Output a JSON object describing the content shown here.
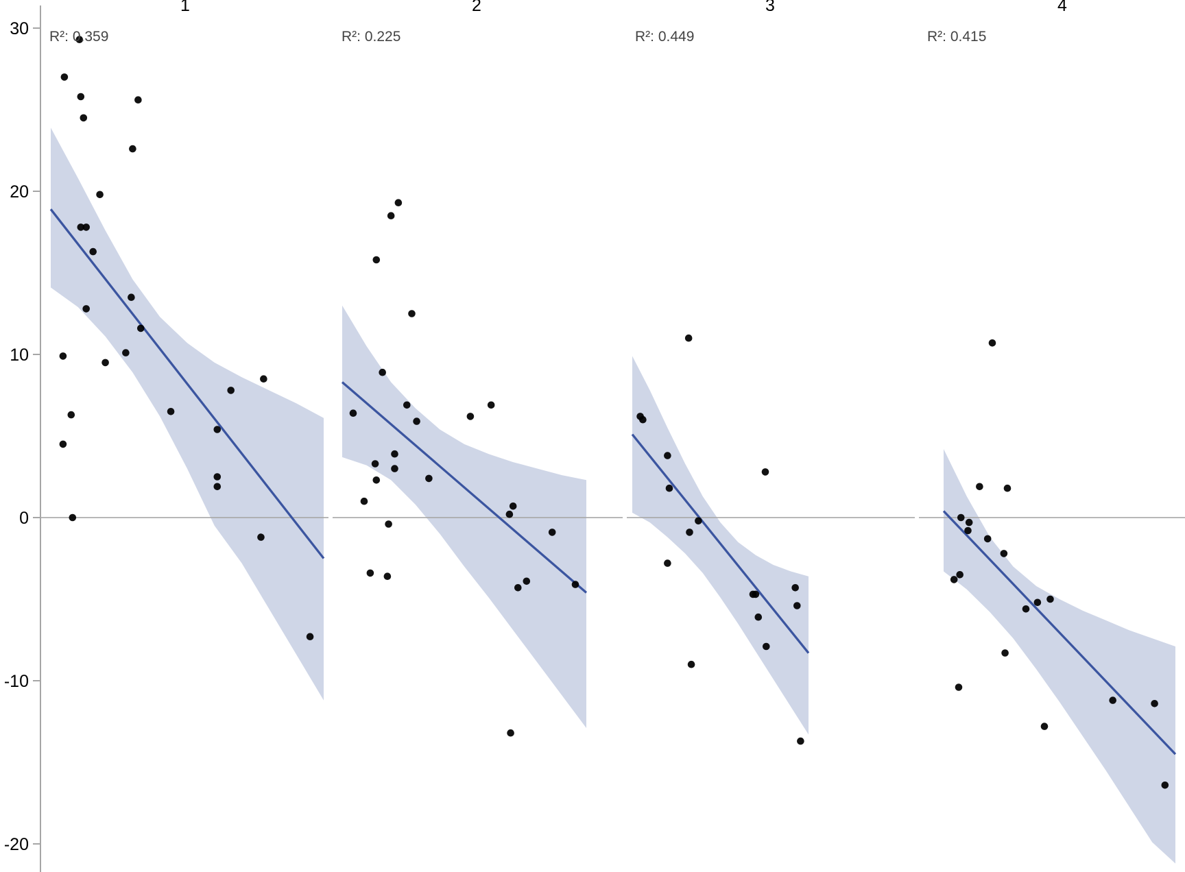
{
  "chart_data": {
    "type": "scatter",
    "title": "",
    "xlabel": "",
    "ylabel": "",
    "facet_labels": [
      "1",
      "2",
      "3",
      "4"
    ],
    "ylim": [
      -21,
      31
    ],
    "yticks": [
      30,
      20,
      10,
      0,
      -10,
      -20
    ],
    "grid": false,
    "zero_line": true,
    "legend": null,
    "colors": {
      "points": "#000000",
      "regression_line": "#3b55a0",
      "confidence_band": "#cfd6e7",
      "axis": "#a6a6a6",
      "r2_text": "#444444"
    },
    "panels": [
      {
        "label": "1",
        "r2_label": "R²: 0.359",
        "r2": 0.359,
        "fit": {
          "y_start": 18.9,
          "y_end": -2.5
        },
        "band": {
          "upper": [
            [
              0,
              23.9
            ],
            [
              0.1,
              20.8
            ],
            [
              0.2,
              17.6
            ],
            [
              0.3,
              14.6
            ],
            [
              0.4,
              12.3
            ],
            [
              0.5,
              10.7
            ],
            [
              0.6,
              9.5
            ],
            [
              0.7,
              8.6
            ],
            [
              0.8,
              7.8
            ],
            [
              0.9,
              7.0
            ],
            [
              1,
              6.1
            ]
          ],
          "lower": [
            [
              0,
              14.1
            ],
            [
              0.1,
              12.9
            ],
            [
              0.2,
              11.1
            ],
            [
              0.3,
              8.9
            ],
            [
              0.4,
              6.2
            ],
            [
              0.5,
              3.0
            ],
            [
              0.6,
              -0.5
            ],
            [
              0.7,
              -2.8
            ],
            [
              0.8,
              -5.6
            ],
            [
              0.9,
              -8.4
            ],
            [
              1,
              -11.2
            ]
          ]
        },
        "points": [
          [
            0.105,
            29.3
          ],
          [
            0.05,
            27.0
          ],
          [
            0.11,
            25.8
          ],
          [
            0.12,
            24.5
          ],
          [
            0.32,
            25.6
          ],
          [
            0.3,
            22.6
          ],
          [
            0.18,
            19.8
          ],
          [
            0.11,
            17.8
          ],
          [
            0.13,
            17.8
          ],
          [
            0.155,
            16.3
          ],
          [
            0.295,
            13.5
          ],
          [
            0.13,
            12.8
          ],
          [
            0.33,
            11.6
          ],
          [
            0.045,
            9.9
          ],
          [
            0.2,
            9.5
          ],
          [
            0.275,
            10.1
          ],
          [
            0.075,
            6.3
          ],
          [
            0.045,
            4.5
          ],
          [
            0.44,
            6.5
          ],
          [
            0.61,
            5.4
          ],
          [
            0.66,
            7.8
          ],
          [
            0.78,
            8.5
          ],
          [
            0.61,
            2.5
          ],
          [
            0.61,
            1.9
          ],
          [
            0.08,
            0.0
          ],
          [
            0.77,
            -1.2
          ],
          [
            0.95,
            -7.3
          ]
        ]
      },
      {
        "label": "2",
        "r2_label": "R²: 0.225",
        "r2": 0.225,
        "fit": {
          "y_start": 8.3,
          "y_end": -4.6
        },
        "band": {
          "upper": [
            [
              0,
              13.0
            ],
            [
              0.1,
              10.5
            ],
            [
              0.2,
              8.3
            ],
            [
              0.3,
              6.7
            ],
            [
              0.4,
              5.4
            ],
            [
              0.5,
              4.5
            ],
            [
              0.6,
              3.9
            ],
            [
              0.7,
              3.4
            ],
            [
              0.8,
              3.0
            ],
            [
              0.9,
              2.6
            ],
            [
              1,
              2.3
            ]
          ],
          "lower": [
            [
              0,
              3.7
            ],
            [
              0.1,
              3.2
            ],
            [
              0.2,
              2.3
            ],
            [
              0.3,
              0.8
            ],
            [
              0.4,
              -1.0
            ],
            [
              0.5,
              -3.0
            ],
            [
              0.6,
              -4.9
            ],
            [
              0.7,
              -6.9
            ],
            [
              0.8,
              -8.9
            ],
            [
              0.9,
              -10.9
            ],
            [
              1,
              -12.9
            ]
          ]
        },
        "points": [
          [
            0.23,
            19.3
          ],
          [
            0.2,
            18.5
          ],
          [
            0.14,
            15.8
          ],
          [
            0.285,
            12.5
          ],
          [
            0.165,
            8.9
          ],
          [
            0.045,
            6.4
          ],
          [
            0.265,
            6.9
          ],
          [
            0.305,
            5.9
          ],
          [
            0.525,
            6.2
          ],
          [
            0.61,
            6.9
          ],
          [
            0.215,
            3.9
          ],
          [
            0.135,
            3.3
          ],
          [
            0.215,
            3.0
          ],
          [
            0.14,
            2.3
          ],
          [
            0.355,
            2.4
          ],
          [
            0.09,
            1.0
          ],
          [
            0.19,
            -0.4
          ],
          [
            0.7,
            0.7
          ],
          [
            0.685,
            0.2
          ],
          [
            0.86,
            -0.9
          ],
          [
            0.115,
            -3.4
          ],
          [
            0.185,
            -3.6
          ],
          [
            0.72,
            -4.3
          ],
          [
            0.755,
            -3.9
          ],
          [
            0.955,
            -4.1
          ],
          [
            0.69,
            -13.2
          ]
        ]
      },
      {
        "label": "3",
        "r2_label": "R²: 0.449",
        "r2": 0.449,
        "fit": {
          "y_start": 5.1,
          "y_end": -8.3
        },
        "band": {
          "upper": [
            [
              0,
              9.9
            ],
            [
              0.1,
              7.8
            ],
            [
              0.2,
              5.5
            ],
            [
              0.3,
              3.3
            ],
            [
              0.4,
              1.3
            ],
            [
              0.5,
              -0.3
            ],
            [
              0.6,
              -1.5
            ],
            [
              0.7,
              -2.3
            ],
            [
              0.8,
              -2.9
            ],
            [
              0.9,
              -3.3
            ],
            [
              1,
              -3.6
            ]
          ],
          "lower": [
            [
              0,
              0.3
            ],
            [
              0.1,
              -0.3
            ],
            [
              0.2,
              -1.2
            ],
            [
              0.3,
              -2.2
            ],
            [
              0.4,
              -3.4
            ],
            [
              0.5,
              -4.9
            ],
            [
              0.6,
              -6.5
            ],
            [
              0.7,
              -8.2
            ],
            [
              0.8,
              -9.9
            ],
            [
              0.9,
              -11.6
            ],
            [
              1,
              -13.3
            ]
          ]
        },
        "points": [
          [
            0.32,
            11.0
          ],
          [
            0.045,
            6.2
          ],
          [
            0.06,
            6.0
          ],
          [
            0.2,
            3.8
          ],
          [
            0.755,
            2.8
          ],
          [
            0.21,
            1.8
          ],
          [
            0.375,
            -0.2
          ],
          [
            0.325,
            -0.9
          ],
          [
            0.2,
            -2.8
          ],
          [
            0.685,
            -4.7
          ],
          [
            0.7,
            -4.7
          ],
          [
            0.715,
            -6.1
          ],
          [
            0.76,
            -7.9
          ],
          [
            0.925,
            -4.3
          ],
          [
            0.935,
            -5.4
          ],
          [
            0.335,
            -9.0
          ],
          [
            0.955,
            -13.7
          ]
        ]
      },
      {
        "label": "4",
        "r2_label": "R²: 0.415",
        "r2": 0.415,
        "fit": {
          "y_start": 0.4,
          "y_end": -14.5
        },
        "band": {
          "upper": [
            [
              0,
              4.2
            ],
            [
              0.1,
              1.3
            ],
            [
              0.2,
              -1.2
            ],
            [
              0.3,
              -3.0
            ],
            [
              0.4,
              -4.2
            ],
            [
              0.5,
              -5.0
            ],
            [
              0.6,
              -5.7
            ],
            [
              0.7,
              -6.3
            ],
            [
              0.8,
              -6.9
            ],
            [
              0.9,
              -7.4
            ],
            [
              1,
              -7.9
            ]
          ],
          "lower": [
            [
              0,
              -3.3
            ],
            [
              0.1,
              -4.4
            ],
            [
              0.2,
              -5.8
            ],
            [
              0.3,
              -7.4
            ],
            [
              0.4,
              -9.3
            ],
            [
              0.5,
              -11.3
            ],
            [
              0.6,
              -13.4
            ],
            [
              0.7,
              -15.5
            ],
            [
              0.8,
              -17.7
            ],
            [
              0.9,
              -19.9
            ],
            [
              1,
              -21.2
            ]
          ]
        },
        "points": [
          [
            0.21,
            10.7
          ],
          [
            0.155,
            1.9
          ],
          [
            0.275,
            1.8
          ],
          [
            0.075,
            0.0
          ],
          [
            0.11,
            -0.3
          ],
          [
            0.105,
            -0.8
          ],
          [
            0.19,
            -1.3
          ],
          [
            0.26,
            -2.2
          ],
          [
            0.045,
            -3.8
          ],
          [
            0.07,
            -3.5
          ],
          [
            0.355,
            -5.6
          ],
          [
            0.405,
            -5.2
          ],
          [
            0.46,
            -5.0
          ],
          [
            0.265,
            -8.3
          ],
          [
            0.065,
            -10.4
          ],
          [
            0.435,
            -12.8
          ],
          [
            0.73,
            -11.2
          ],
          [
            0.91,
            -11.4
          ],
          [
            0.955,
            -16.4
          ]
        ]
      }
    ]
  },
  "axis": {
    "tick_labels": [
      "30",
      "20",
      "10",
      "0",
      "-10",
      "-20"
    ]
  }
}
